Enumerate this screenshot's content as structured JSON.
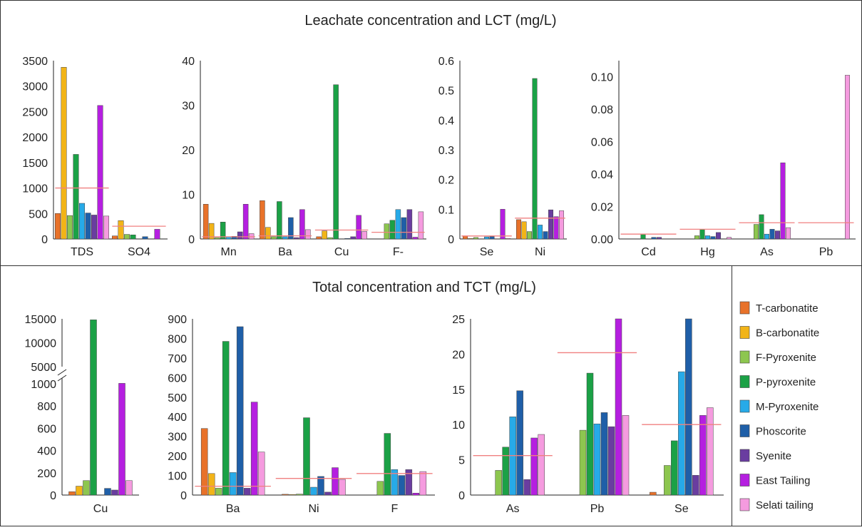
{
  "titles": {
    "top": "Leachate concentration and LCT (mg/L)",
    "bottom": "Total concentration  and TCT (mg/L)"
  },
  "legend": {
    "items": [
      {
        "label": "T-carbonatite",
        "color": "#E8722A"
      },
      {
        "label": "B-carbonatite",
        "color": "#F2B418"
      },
      {
        "label": "F-Pyroxenite",
        "color": "#8DC64F"
      },
      {
        "label": "P-pyroxenite",
        "color": "#1BA146"
      },
      {
        "label": "M-Pyroxenite",
        "color": "#27AAE8"
      },
      {
        "label": "Phoscorite",
        "color": "#1F5FA8"
      },
      {
        "label": "Syenite",
        "color": "#6A3DA0"
      },
      {
        "label": "East Tailing",
        "color": "#B51FE0"
      },
      {
        "label": "Selati tailing",
        "color": "#F59BDF"
      }
    ]
  },
  "threshold_color": "#F08080",
  "chart_data": [
    {
      "type": "bar",
      "categories": [
        "TDS",
        "SO4"
      ],
      "ylim": [
        0,
        3500
      ],
      "ticks": [
        "0",
        "500",
        "1000",
        "1500",
        "2000",
        "2500",
        "3000",
        "3500"
      ],
      "values": [
        [
          500,
          3370,
          460,
          1660,
          700,
          510,
          470,
          2620,
          450
        ],
        [
          60,
          360,
          90,
          80,
          0,
          45,
          0,
          190,
          0
        ]
      ],
      "thresholds": [
        1000,
        250
      ]
    },
    {
      "type": "bar",
      "categories": [
        "Mn",
        "Ba",
        "Cu",
        "F-"
      ],
      "ylim": [
        0,
        40
      ],
      "ticks": [
        "0",
        "10",
        "20",
        "30",
        "40"
      ],
      "values": [
        [
          7.8,
          3.5,
          0.3,
          3.8,
          0.5,
          0.6,
          1.6,
          7.8,
          1.2
        ],
        [
          8.6,
          2.6,
          0.5,
          8.4,
          0.5,
          4.8,
          0.3,
          6.6,
          2.1
        ],
        [
          0.5,
          1.8,
          0.3,
          34.6,
          0,
          0.1,
          0.5,
          5.3,
          1.7
        ],
        [
          0,
          0,
          3.4,
          4.2,
          6.6,
          4.8,
          6.6,
          0.4,
          6.1
        ]
      ],
      "thresholds": [
        0.5,
        0.7,
        2.0,
        1.5
      ]
    },
    {
      "type": "bar",
      "categories": [
        "Se",
        "Ni"
      ],
      "ylim": [
        0,
        0.6
      ],
      "ticks": [
        "0",
        "0.1",
        "0.2",
        "0.3",
        "0.4",
        "0.5",
        "0.6"
      ],
      "values": [
        [
          0.01,
          0.001,
          0.005,
          0,
          0.007,
          0.008,
          0,
          0.1,
          0.002
        ],
        [
          0.065,
          0.058,
          0.025,
          0.54,
          0.047,
          0.025,
          0.098,
          0.075,
          0.095
        ]
      ],
      "thresholds": [
        0.01,
        0.07
      ]
    },
    {
      "type": "bar",
      "categories": [
        "Cd",
        "Hg",
        "As",
        "Pb"
      ],
      "ylim": [
        0,
        0.11
      ],
      "ticks": [
        "0.00",
        "0.02",
        "0.04",
        "0.06",
        "0.08",
        "0.10"
      ],
      "values": [
        [
          0,
          0,
          0,
          0.003,
          0,
          0.001,
          0.001,
          0,
          0
        ],
        [
          0,
          0,
          0.002,
          0.006,
          0.002,
          0.0015,
          0.004,
          0,
          0.001
        ],
        [
          0,
          0,
          0.009,
          0.015,
          0.003,
          0.006,
          0.005,
          0.047,
          0.007
        ],
        [
          0,
          0,
          0,
          0,
          0,
          0,
          0,
          0,
          0.101
        ]
      ],
      "thresholds": [
        0.003,
        0.006,
        0.01,
        0.01
      ]
    },
    {
      "type": "bar",
      "categories": [
        "Cu"
      ],
      "ticks": [
        "0",
        "200",
        "400",
        "600",
        "800",
        "1000",
        "5000",
        "10000",
        "15000"
      ],
      "axis_break": [
        1000,
        5000
      ],
      "values": [
        [
          30,
          80,
          130,
          14800,
          0,
          60,
          45,
          1100,
          130
        ]
      ],
      "thresholds": [
        0
      ]
    },
    {
      "type": "bar",
      "categories": [
        "Ba",
        "Ni",
        "F"
      ],
      "ylim": [
        0,
        900
      ],
      "ticks": [
        "0",
        "100",
        "200",
        "300",
        "400",
        "500",
        "600",
        "700",
        "800",
        "900"
      ],
      "values": [
        [
          340,
          110,
          35,
          785,
          115,
          860,
          35,
          475,
          220
        ],
        [
          4,
          3,
          5,
          395,
          40,
          95,
          15,
          140,
          80
        ],
        [
          0,
          0,
          70,
          315,
          130,
          100,
          130,
          10,
          120
        ]
      ],
      "thresholds": [
        45,
        85,
        110
      ]
    },
    {
      "type": "bar",
      "categories": [
        "As",
        "Pb",
        "Se"
      ],
      "ylim": [
        0,
        25
      ],
      "ticks": [
        "0",
        "5",
        "10",
        "15",
        "20",
        "25"
      ],
      "values": [
        [
          0,
          0,
          3.5,
          6.8,
          11.1,
          14.8,
          2.2,
          8.1,
          8.6
        ],
        [
          0,
          0,
          9.2,
          17.3,
          10.1,
          11.7,
          9.7,
          25,
          11.3
        ],
        [
          0.4,
          0,
          4.2,
          7.7,
          17.5,
          25,
          2.8,
          11.3,
          12.4
        ]
      ],
      "thresholds": [
        5.6,
        20.2,
        10.0
      ]
    }
  ]
}
